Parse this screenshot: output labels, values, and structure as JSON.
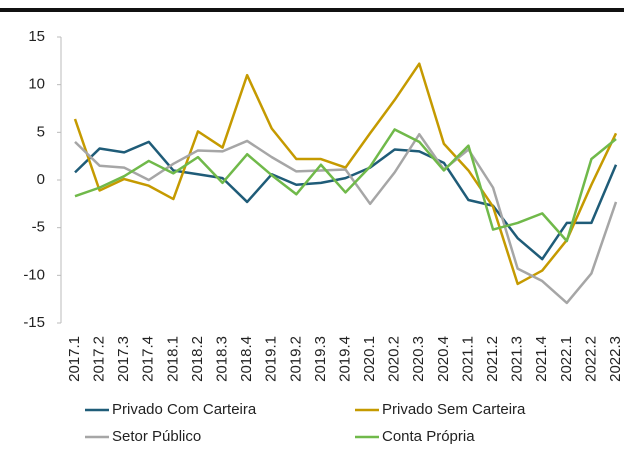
{
  "chart_data": {
    "type": "line",
    "categories": [
      "2017.1",
      "2017.2",
      "2017.3",
      "2017.4",
      "2018.1",
      "2018.2",
      "2018.3",
      "2018.4",
      "2019.1",
      "2019.2",
      "2019.3",
      "2019.4",
      "2020.1",
      "2020.2",
      "2020.3",
      "2020.4",
      "2021.1",
      "2021.2",
      "2021.3",
      "2021.4",
      "2022.1",
      "2022.2",
      "2022.3"
    ],
    "series": [
      {
        "name": "Privado Com Carteira",
        "color": "#1f5c78",
        "values": [
          0.8,
          3.3,
          2.9,
          4.0,
          1.0,
          0.6,
          0.2,
          -2.3,
          0.6,
          -0.5,
          -0.3,
          0.2,
          1.3,
          3.2,
          3.0,
          1.8,
          -2.1,
          -2.7,
          -6.1,
          -8.3,
          -4.5,
          -4.5,
          1.6
        ]
      },
      {
        "name": "Privado Sem Carteira",
        "color": "#c59a00",
        "values": [
          6.4,
          -1.1,
          0.1,
          -0.6,
          -2.0,
          5.1,
          3.4,
          11.0,
          5.4,
          2.2,
          2.2,
          1.3,
          4.9,
          8.4,
          12.2,
          3.8,
          1.0,
          -2.8,
          -10.9,
          -9.5,
          -6.3,
          -0.5,
          4.9
        ]
      },
      {
        "name": "Setor Público",
        "color": "#a6a6a6",
        "values": [
          4.0,
          1.5,
          1.3,
          0.0,
          1.7,
          3.1,
          3.0,
          4.1,
          2.4,
          0.9,
          1.0,
          1.1,
          -2.5,
          0.8,
          4.8,
          1.1,
          3.2,
          -0.8,
          -9.3,
          -10.6,
          -12.9,
          -9.8,
          -2.3
        ]
      },
      {
        "name": "Conta Própria",
        "color": "#70b94a",
        "values": [
          -1.7,
          -0.8,
          0.4,
          2.0,
          0.7,
          2.4,
          -0.3,
          2.7,
          0.5,
          -1.5,
          1.6,
          -1.3,
          1.4,
          5.3,
          4.0,
          1.0,
          3.6,
          -5.2,
          -4.5,
          -3.5,
          -6.4,
          2.2,
          4.3
        ]
      }
    ],
    "ylim": [
      -15,
      15
    ],
    "yticks": [
      -15,
      -10,
      -5,
      0,
      5,
      10,
      15
    ],
    "grid": false,
    "legend": "bottom"
  }
}
